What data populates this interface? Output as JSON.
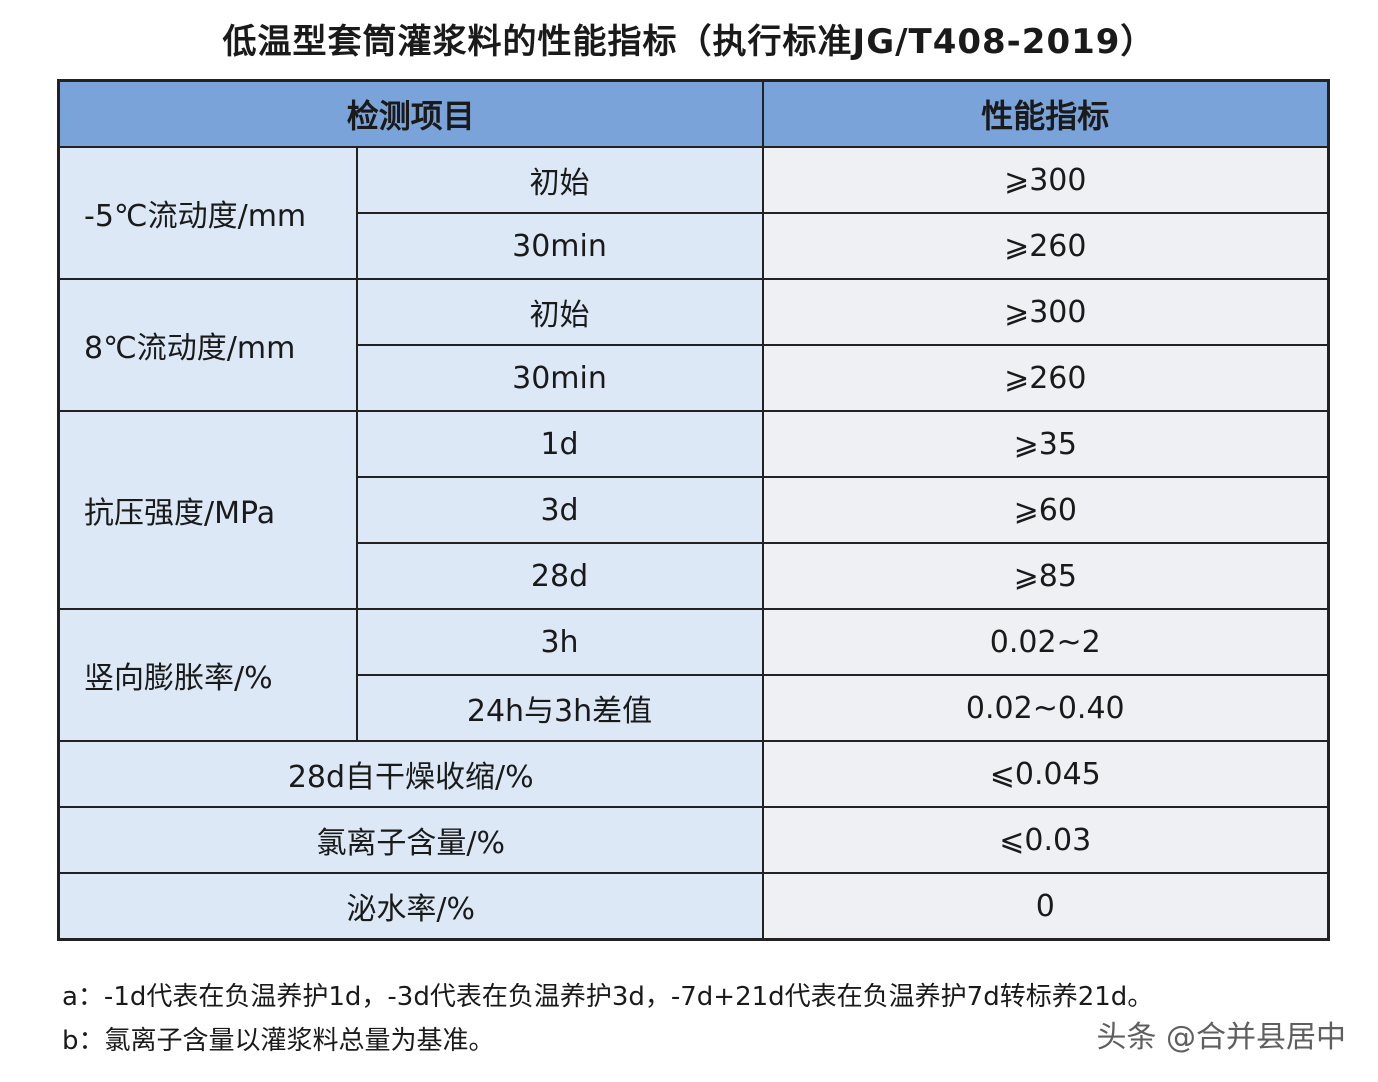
{
  "title": "低温型套筒灌浆料的性能指标（执行标准JG/T408-2019）",
  "table": {
    "header": {
      "item": "检测项目",
      "value": "性能指标"
    },
    "groups": [
      {
        "label": "-5℃流动度/mm",
        "rows": [
          {
            "sub": "初始",
            "value": "⩾300"
          },
          {
            "sub": "30min",
            "value": "⩾260"
          }
        ]
      },
      {
        "label": "8℃流动度/mm",
        "rows": [
          {
            "sub": "初始",
            "value": "⩾300"
          },
          {
            "sub": "30min",
            "value": "⩾260"
          }
        ]
      },
      {
        "label": "抗压强度/MPa",
        "rows": [
          {
            "sub": "1d",
            "value": "⩾35"
          },
          {
            "sub": "3d",
            "value": "⩾60"
          },
          {
            "sub": "28d",
            "value": "⩾85"
          }
        ]
      },
      {
        "label": "竖向膨胀率/%",
        "rows": [
          {
            "sub": "3h",
            "value": "0.02~2"
          },
          {
            "sub": "24h与3h差值",
            "value": "0.02~0.40"
          }
        ]
      }
    ],
    "singles": [
      {
        "label": "28d自干燥收缩/%",
        "value": "⩽0.045"
      },
      {
        "label": "氯离子含量/%",
        "value": "⩽0.03"
      },
      {
        "label": "泌水率/%",
        "value": "0"
      }
    ]
  },
  "notes": {
    "a": "a：-1d代表在负温养护1d，-3d代表在负温养护3d，-7d+21d代表在负温养护7d转标养21d。",
    "b": "b：氯离子含量以灌浆料总量为基准。"
  },
  "watermark": "头条 @合并县居中"
}
